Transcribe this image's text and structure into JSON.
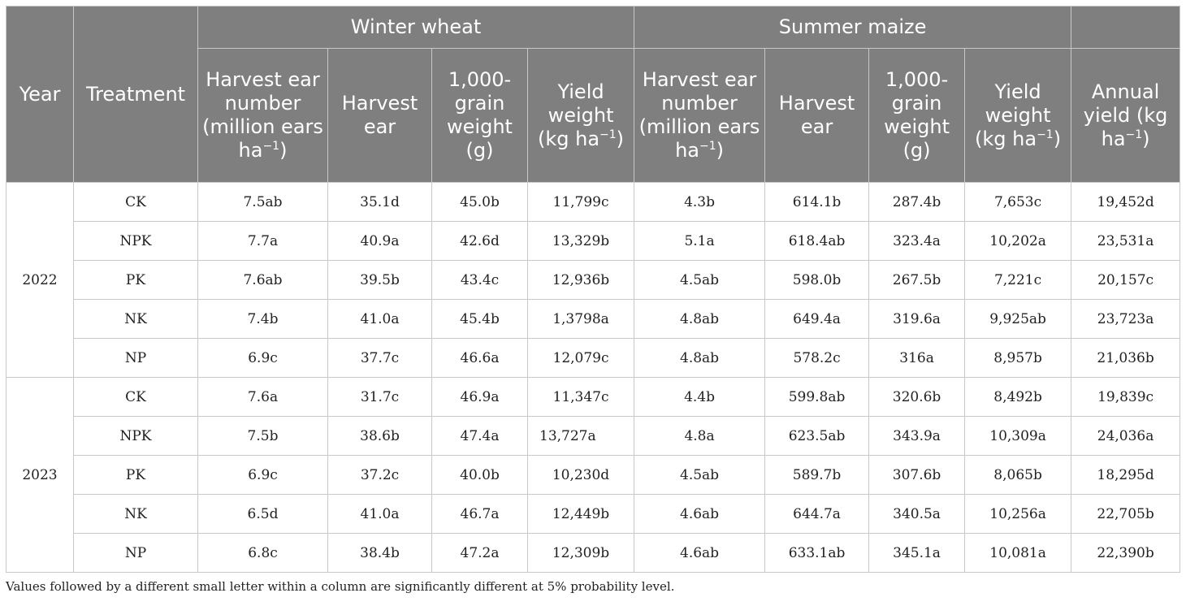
{
  "header": {
    "year": "Year",
    "treatment": "Treatment",
    "group_wheat": "Winter wheat",
    "group_maize": "Summer maize",
    "ear_number_main": "Harvest ear number (million ears ha",
    "unit_exp": "−1",
    "ear_number_close": ")",
    "harvest_ear": "Harvest ear",
    "grain_weight": "1,000-grain weight (g)",
    "yield_weight_main": "Yield weight (kg ha",
    "yield_close": ")",
    "annual_yield_main": "Annual yield (kg ha",
    "annual_close": ")"
  },
  "groups": [
    {
      "year": "2022",
      "rows": [
        {
          "treatment": "CK",
          "cells": [
            "7.5ab",
            "35.1d",
            "45.0b",
            "11,799c",
            "4.3b",
            "614.1b",
            "287.4b",
            "7,653c",
            "19,452d"
          ]
        },
        {
          "treatment": "NPK",
          "cells": [
            "7.7a",
            "40.9a",
            "42.6d",
            "13,329b",
            "5.1a",
            "618.4ab",
            "323.4a",
            "10,202a",
            "23,531a"
          ]
        },
        {
          "treatment": "PK",
          "cells": [
            "7.6ab",
            "39.5b",
            "43.4c",
            "12,936b",
            "4.5ab",
            "598.0b",
            "267.5b",
            "7,221c",
            "20,157c"
          ]
        },
        {
          "treatment": "NK",
          "cells": [
            "7.4b",
            "41.0a",
            "45.4b",
            "1,3798a",
            "4.8ab",
            "649.4a",
            "319.6a",
            "9,925ab",
            "23,723a"
          ]
        },
        {
          "treatment": "NP",
          "cells": [
            "6.9c",
            "37.7c",
            "46.6a",
            "12,079c",
            "4.8ab",
            "578.2c",
            "316a",
            "8,957b",
            "21,036b"
          ]
        }
      ]
    },
    {
      "year": "2023",
      "rows": [
        {
          "treatment": "CK",
          "cells": [
            "7.6a",
            "31.7c",
            "46.9a",
            "11,347c",
            "4.4b",
            "599.8ab",
            "320.6b",
            "8,492b",
            "19,839c"
          ]
        },
        {
          "treatment": "NPK",
          "cells": [
            "7.5b",
            "38.6b",
            "47.4a",
            "13,727a",
            "4.8a",
            "623.5ab",
            "343.9a",
            "10,309a",
            "24,036a"
          ]
        },
        {
          "treatment": "PK",
          "cells": [
            "6.9c",
            "37.2c",
            "40.0b",
            "10,230d",
            "4.5ab",
            "589.7b",
            "307.6b",
            "8,065b",
            "18,295d"
          ]
        },
        {
          "treatment": "NK",
          "cells": [
            "6.5d",
            "41.0a",
            "46.7a",
            "12,449b",
            "4.6ab",
            "644.7a",
            "340.5a",
            "10,256a",
            "22,705b"
          ]
        },
        {
          "treatment": "NP",
          "cells": [
            "6.8c",
            "38.4b",
            "47.2a",
            "12,309b",
            "4.6ab",
            "633.1ab",
            "345.1a",
            "10,081a",
            "22,390b"
          ]
        }
      ]
    }
  ],
  "footnote": "Values followed by a different small letter within a column are significantly different at 5% probability level."
}
